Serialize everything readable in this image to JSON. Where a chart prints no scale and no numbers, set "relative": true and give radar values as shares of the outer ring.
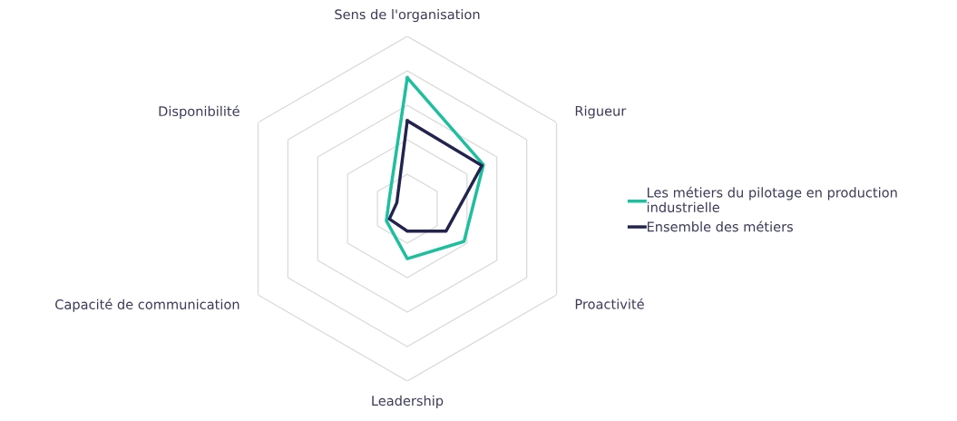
{
  "chart_data": {
    "type": "radar",
    "relative": true,
    "categories": [
      "Sens de l'organisation",
      "Rigueur",
      "Proactivité",
      "Leadership",
      "Capacité de communication",
      "Disponibilité"
    ],
    "series": [
      {
        "name": "Les métiers du pilotage en production industrielle",
        "color": "#1dbf9f",
        "values": [
          0.76,
          0.51,
          0.38,
          0.29,
          0.14,
          0.12
        ]
      },
      {
        "name": "Ensemble des métiers",
        "color": "#22244f",
        "values": [
          0.51,
          0.5,
          0.26,
          0.13,
          0.12,
          0.07
        ]
      }
    ],
    "grid": true,
    "legend": "right",
    "marker": "none"
  }
}
